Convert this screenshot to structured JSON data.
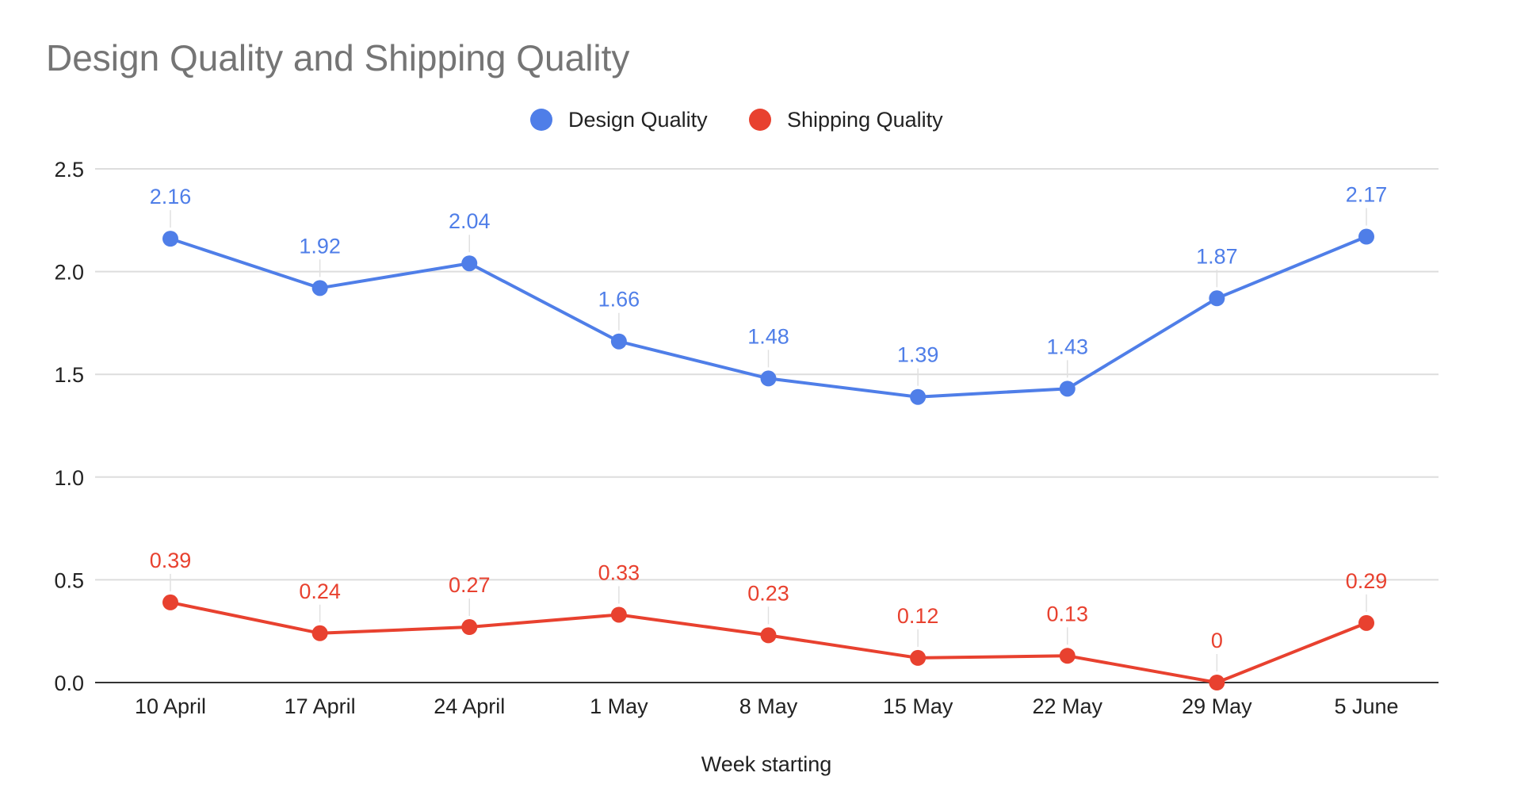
{
  "chart_data": {
    "type": "line",
    "title": "Design Quality and Shipping Quality",
    "xlabel": "Week starting",
    "ylabel": "",
    "categories": [
      "10 April",
      "17 April",
      "24 April",
      "1 May",
      "8 May",
      "15 May",
      "22 May",
      "29 May",
      "5 June"
    ],
    "ylim": [
      0,
      2.5
    ],
    "yticks": [
      "0.0",
      "0.5",
      "1.0",
      "1.5",
      "2.0",
      "2.5"
    ],
    "grid": true,
    "legend_position": "top",
    "series": [
      {
        "name": "Design Quality",
        "color": "#4f7ee8",
        "values": [
          2.16,
          1.92,
          2.04,
          1.66,
          1.48,
          1.39,
          1.43,
          1.87,
          2.17
        ],
        "labels": [
          "2.16",
          "1.92",
          "2.04",
          "1.66",
          "1.48",
          "1.39",
          "1.43",
          "1.87",
          "2.17"
        ]
      },
      {
        "name": "Shipping Quality",
        "color": "#e8412f",
        "values": [
          0.39,
          0.24,
          0.27,
          0.33,
          0.23,
          0.12,
          0.13,
          0,
          0.29
        ],
        "labels": [
          "0.39",
          "0.24",
          "0.27",
          "0.33",
          "0.23",
          "0.12",
          "0.13",
          "0",
          "0.29"
        ]
      }
    ]
  }
}
